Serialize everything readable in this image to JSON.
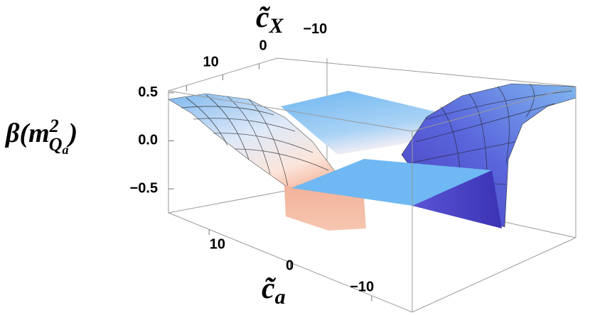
{
  "chart_data": {
    "type": "surface3d",
    "x_label": {
      "base": "c̃",
      "sub": "X"
    },
    "y_label": {
      "base": "c̃",
      "sub": "a"
    },
    "z_label": {
      "base": "β(m",
      "sup": "2",
      "sub": "Q",
      "subsub": "a",
      "close": ")"
    },
    "xlim": [
      15,
      -15
    ],
    "xticks": [
      10,
      0,
      {
        "value": -10,
        "label": "−10"
      }
    ],
    "ylim": [
      15,
      -15
    ],
    "yticks": [
      10,
      0,
      {
        "value": -10,
        "label": "−10"
      }
    ],
    "zlim": [
      -0.75,
      0.55
    ],
    "zticks": [
      0.5,
      {
        "value": 0,
        "label": "0.0"
      },
      {
        "value": -0.5,
        "label": "−0.5"
      }
    ]
  }
}
